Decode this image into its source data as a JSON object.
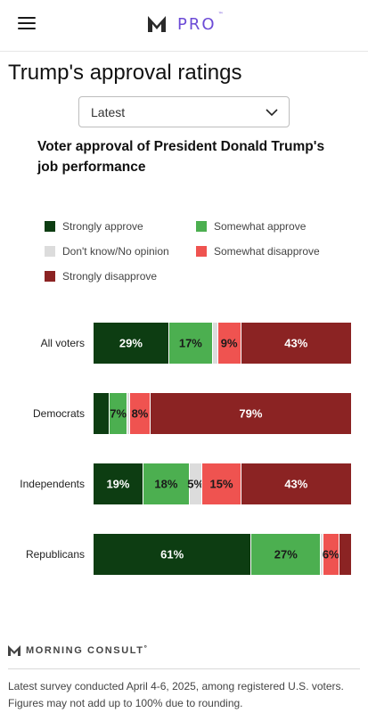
{
  "header": {
    "brand_text": "PRO",
    "brand_tm": "™",
    "menu_icon": "hamburger-menu-icon",
    "logo_icon": "morning-consult-m-logo-icon"
  },
  "page": {
    "title": "Trump's approval ratings"
  },
  "filter": {
    "selected": "Latest",
    "chevron_icon": "chevron-down-icon"
  },
  "chart_title": "Voter approval of President Donald Trump's job performance",
  "colors": {
    "strongly_approve": "#0d3d12",
    "somewhat_approve": "#4caf50",
    "dont_know": "#dcdcdc",
    "somewhat_disapprove": "#ef5350",
    "strongly_disapprove": "#8b2323"
  },
  "legend": [
    {
      "key": "strongly_approve",
      "label": "Strongly approve"
    },
    {
      "key": "somewhat_approve",
      "label": "Somewhat approve"
    },
    {
      "key": "dont_know",
      "label": "Don't know/No opinion"
    },
    {
      "key": "somewhat_disapprove",
      "label": "Somewhat disapprove"
    },
    {
      "key": "strongly_disapprove",
      "label": "Strongly disapprove"
    }
  ],
  "chart_data": {
    "type": "bar",
    "orientation": "horizontal-stacked",
    "title": "Voter approval of President Donald Trump's job performance",
    "categories": [
      "All voters",
      "Democrats",
      "Independents",
      "Republicans"
    ],
    "series": [
      {
        "name": "Strongly approve",
        "key": "strongly_approve",
        "values": [
          29,
          6,
          19,
          61
        ],
        "labels": [
          "29%",
          "",
          "19%",
          "61%"
        ]
      },
      {
        "name": "Somewhat approve",
        "key": "somewhat_approve",
        "values": [
          17,
          7,
          18,
          27
        ],
        "labels": [
          "17%",
          "7%",
          "18%",
          "27%"
        ]
      },
      {
        "name": "Don't know/No opinion",
        "key": "dont_know",
        "values": [
          2,
          1,
          5,
          1
        ],
        "labels": [
          "",
          "",
          "5%",
          ""
        ]
      },
      {
        "name": "Somewhat disapprove",
        "key": "somewhat_disapprove",
        "values": [
          9,
          8,
          15,
          6
        ],
        "labels": [
          "9%",
          "8%",
          "15%",
          "6%"
        ]
      },
      {
        "name": "Strongly disapprove",
        "key": "strongly_disapprove",
        "values": [
          43,
          79,
          43,
          5
        ],
        "labels": [
          "43%",
          "79%",
          "43%",
          ""
        ]
      }
    ],
    "xlim": [
      0,
      100
    ],
    "legend_position": "top"
  },
  "footer": {
    "logo_text": "MORNING CONSULT",
    "logo_tm": "˚",
    "note": "Latest survey conducted April 4-6, 2025, among registered U.S. voters. Figures may not add up to 100% due to rounding."
  }
}
